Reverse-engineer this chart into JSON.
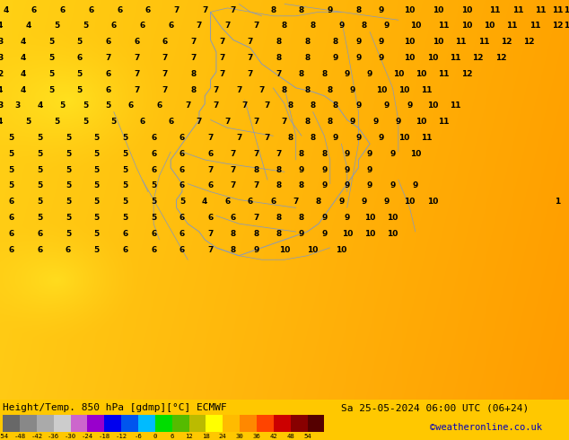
{
  "title_left": "Height/Temp. 850 hPa [gdmp][°C] ECMWF",
  "title_right": "Sa 25-05-2024 06:00 UTC (06+24)",
  "credit": "©weatheronline.co.uk",
  "colorbar_tick_labels": [
    "-54",
    "-48",
    "-42",
    "-36",
    "-30",
    "-24",
    "-18",
    "-12",
    "-6",
    "0",
    "6",
    "12",
    "18",
    "24",
    "30",
    "36",
    "42",
    "48",
    "54"
  ],
  "colors": [
    "#686868",
    "#888888",
    "#aaaaaa",
    "#cccccc",
    "#cc66cc",
    "#9900cc",
    "#0000ee",
    "#0055ee",
    "#00bbff",
    "#00dd00",
    "#55bb00",
    "#bbbb00",
    "#ffff00",
    "#ffbb00",
    "#ff8800",
    "#ff4400",
    "#cc0000",
    "#880000",
    "#550000"
  ],
  "background_color": "#ffc800",
  "map_bg_start": "#ffe060",
  "map_bg_end": "#e8a000",
  "numbers_color": "#000000",
  "credit_color": "#0000bb",
  "border_color": "#8899bb",
  "fig_width": 6.34,
  "fig_height": 4.9,
  "numbers": [
    [
      "4",
      "6",
      "6",
      "6",
      "6",
      "6",
      "7",
      "7",
      "7",
      "8",
      "8",
      "9",
      "8",
      "9",
      "10",
      "10",
      "10",
      "11",
      "11",
      "11",
      "11",
      "11"
    ],
    [
      "4",
      "4",
      "5",
      "5",
      "6",
      "6",
      "6",
      "7",
      "7",
      "7",
      "8",
      "8",
      "9",
      "8",
      "9",
      "10",
      "11",
      "10",
      "10",
      "11",
      "11",
      "12",
      "11"
    ],
    [
      "3",
      "4",
      "5",
      "5",
      "6",
      "6",
      "6",
      "7",
      "7",
      "7",
      "8",
      "8",
      "8",
      "9",
      "9",
      "10",
      "10",
      "11",
      "11",
      "12",
      "12"
    ],
    [
      "3",
      "4",
      "5",
      "6",
      "7",
      "7",
      "7",
      "7",
      "7",
      "7",
      "8",
      "8",
      "9",
      "9",
      "9",
      "10",
      "10",
      "11",
      "12",
      "12"
    ],
    [
      "2",
      "4",
      "5",
      "5",
      "6",
      "7",
      "7",
      "8",
      "7",
      "7",
      "7",
      "8",
      "8",
      "9",
      "9",
      "10",
      "10",
      "11",
      "12"
    ],
    [
      "4",
      "4",
      "5",
      "5",
      "6",
      "7",
      "7",
      "8",
      "7",
      "7",
      "7",
      "8",
      "8",
      "8",
      "9",
      "10",
      "10",
      "11"
    ],
    [
      "3",
      "3",
      "4",
      "5",
      "5",
      "5",
      "6",
      "6",
      "7",
      "7",
      "7",
      "7",
      "8",
      "8",
      "8",
      "9",
      "9",
      "9",
      "10",
      "11"
    ],
    [
      "4",
      "5",
      "5",
      "5",
      "5",
      "6",
      "6",
      "7",
      "7",
      "7",
      "7",
      "8",
      "8",
      "9",
      "9",
      "9",
      "10",
      "11"
    ],
    [
      "5",
      "5",
      "5",
      "5",
      "5",
      "6",
      "6",
      "7",
      "7",
      "7",
      "8",
      "8",
      "9",
      "9",
      "9",
      "10",
      "11"
    ],
    [
      "5",
      "5",
      "5",
      "5",
      "5",
      "6",
      "6",
      "6",
      "7",
      "7",
      "7",
      "8",
      "8",
      "9",
      "9",
      "9",
      "10"
    ],
    [
      "5",
      "5",
      "5",
      "5",
      "5",
      "6",
      "6",
      "7",
      "7",
      "8",
      "8",
      "9",
      "9",
      "9",
      "9"
    ],
    [
      "5",
      "5",
      "5",
      "5",
      "5",
      "5",
      "6",
      "6",
      "7",
      "7",
      "8",
      "8",
      "9",
      "9",
      "9",
      "9",
      "9"
    ],
    [
      "6",
      "5",
      "5",
      "5",
      "5",
      "5",
      "5",
      "4",
      "6",
      "6",
      "6",
      "7",
      "8",
      "9",
      "9",
      "9",
      "10",
      "10",
      "1"
    ],
    [
      "6",
      "5",
      "5",
      "5",
      "5",
      "5",
      "6",
      "6",
      "6",
      "7",
      "8",
      "8",
      "9",
      "9",
      "10",
      "10"
    ],
    [
      "6",
      "6",
      "5",
      "5",
      "6",
      "6",
      "6",
      "7",
      "8",
      "8",
      "8",
      "9",
      "9",
      "10",
      "10",
      "10"
    ],
    [
      "6",
      "6",
      "6",
      "5",
      "6",
      "6",
      "6",
      "7",
      "8",
      "9",
      "10",
      "10",
      "10"
    ]
  ]
}
